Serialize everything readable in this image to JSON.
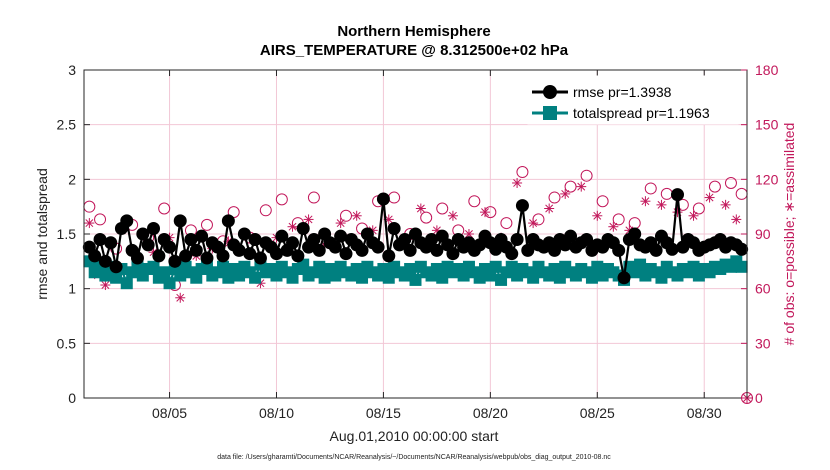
{
  "chart_data": {
    "type": "line",
    "title": "Northern Hemisphere",
    "subtitle": "AIRS_TEMPERATURE @ 8.312500e+02 hPa",
    "xlabel": "Aug.01,2010 00:00:00 start",
    "ylabel": "rmse and totalspread",
    "y2label": "# of obs: o=possible; ∗=assimilated",
    "xlim": [
      1,
      32
    ],
    "ylim": [
      0,
      3
    ],
    "y2lim": [
      0,
      180
    ],
    "x_ticks": [
      5,
      10,
      15,
      20,
      25,
      30
    ],
    "x_tick_labels": [
      "08/05",
      "08/10",
      "08/15",
      "08/20",
      "08/25",
      "08/30"
    ],
    "y_tick_labels": [
      "0",
      "0.5",
      "1",
      "1.5",
      "2",
      "2.5",
      "3"
    ],
    "y2_tick_labels": [
      "0",
      "30",
      "60",
      "90",
      "120",
      "150",
      "180"
    ],
    "grid": true,
    "legend_position": "top-right",
    "colors": {
      "rmse": "#000000",
      "totalspread": "#008080",
      "obs": "#c2185b"
    },
    "series": [
      {
        "name": "rmse pr=1.3938",
        "axis": "left",
        "marker": "circle",
        "x": [
          1.25,
          1.5,
          1.75,
          2,
          2.25,
          2.5,
          2.75,
          3,
          3.25,
          3.5,
          3.75,
          4,
          4.25,
          4.5,
          4.75,
          5,
          5.25,
          5.5,
          5.75,
          6,
          6.25,
          6.5,
          6.75,
          7,
          7.25,
          7.5,
          7.75,
          8,
          8.25,
          8.5,
          8.75,
          9,
          9.25,
          9.5,
          9.75,
          10,
          10.25,
          10.5,
          10.75,
          11,
          11.25,
          11.5,
          11.75,
          12,
          12.25,
          12.5,
          12.75,
          13,
          13.25,
          13.5,
          13.75,
          14,
          14.25,
          14.5,
          14.75,
          15,
          15.25,
          15.5,
          15.75,
          16,
          16.25,
          16.5,
          16.75,
          17,
          17.25,
          17.5,
          17.75,
          18,
          18.25,
          18.5,
          18.75,
          19,
          19.25,
          19.5,
          19.75,
          20,
          20.25,
          20.5,
          20.75,
          21,
          21.25,
          21.5,
          21.75,
          22,
          22.25,
          22.5,
          22.75,
          23,
          23.25,
          23.5,
          23.75,
          24,
          24.25,
          24.5,
          24.75,
          25,
          25.25,
          25.5,
          25.75,
          26,
          26.25,
          26.5,
          26.75,
          27,
          27.25,
          27.5,
          27.75,
          28,
          28.25,
          28.5,
          28.75,
          29,
          29.25,
          29.5,
          29.75,
          30,
          30.25,
          30.5,
          30.75,
          31,
          31.25,
          31.5,
          31.75
        ],
        "values": [
          1.38,
          1.3,
          1.45,
          1.25,
          1.42,
          1.2,
          1.55,
          1.62,
          1.35,
          1.28,
          1.5,
          1.4,
          1.55,
          1.3,
          1.45,
          1.38,
          1.25,
          1.62,
          1.3,
          1.45,
          1.35,
          1.48,
          1.28,
          1.42,
          1.38,
          1.3,
          1.62,
          1.4,
          1.35,
          1.5,
          1.32,
          1.45,
          1.28,
          1.42,
          1.38,
          1.32,
          1.48,
          1.35,
          1.42,
          1.3,
          1.55,
          1.38,
          1.45,
          1.35,
          1.5,
          1.42,
          1.38,
          1.48,
          1.32,
          1.45,
          1.4,
          1.35,
          1.5,
          1.42,
          1.38,
          1.82,
          1.3,
          1.55,
          1.4,
          1.45,
          1.35,
          1.5,
          1.42,
          1.38,
          1.45,
          1.35,
          1.48,
          1.4,
          1.32,
          1.45,
          1.38,
          1.42,
          1.35,
          1.4,
          1.48,
          1.42,
          1.36,
          1.45,
          1.38,
          1.32,
          1.45,
          1.76,
          1.35,
          1.45,
          1.4,
          1.38,
          1.42,
          1.35,
          1.45,
          1.4,
          1.48,
          1.38,
          1.42,
          1.45,
          1.35,
          1.4,
          1.38,
          1.45,
          1.42,
          1.35,
          1.1,
          1.45,
          1.5,
          1.4,
          1.38,
          1.42,
          1.35,
          1.48,
          1.42,
          1.36,
          1.86,
          1.38,
          1.45,
          1.42,
          1.35,
          1.38,
          1.4,
          1.42,
          1.45,
          1.38,
          1.42,
          1.4,
          1.36
        ]
      },
      {
        "name": "totalspread pr=1.1963",
        "axis": "left",
        "marker": "square",
        "x": [
          1.25,
          1.5,
          1.75,
          2,
          2.25,
          2.5,
          2.75,
          3,
          3.25,
          3.5,
          3.75,
          4,
          4.25,
          4.5,
          4.75,
          5,
          5.25,
          5.5,
          5.75,
          6,
          6.25,
          6.5,
          6.75,
          7,
          7.25,
          7.5,
          7.75,
          8,
          8.25,
          8.5,
          8.75,
          9,
          9.25,
          9.5,
          9.75,
          10,
          10.25,
          10.5,
          10.75,
          11,
          11.25,
          11.5,
          11.75,
          12,
          12.25,
          12.5,
          12.75,
          13,
          13.25,
          13.5,
          13.75,
          14,
          14.25,
          14.5,
          14.75,
          15,
          15.25,
          15.5,
          15.75,
          16,
          16.25,
          16.5,
          16.75,
          17,
          17.25,
          17.5,
          17.75,
          18,
          18.25,
          18.5,
          18.75,
          19,
          19.25,
          19.5,
          19.75,
          20,
          20.25,
          20.5,
          20.75,
          21,
          21.25,
          21.5,
          21.75,
          22,
          22.25,
          22.5,
          22.75,
          23,
          23.25,
          23.5,
          23.75,
          24,
          24.25,
          24.5,
          24.75,
          25,
          25.25,
          25.5,
          25.75,
          26,
          26.25,
          26.5,
          26.75,
          27,
          27.25,
          27.5,
          27.75,
          28,
          28.25,
          28.5,
          28.75,
          29,
          29.25,
          29.5,
          29.75,
          30,
          30.25,
          30.5,
          30.75,
          31,
          31.25,
          31.5,
          31.75
        ],
        "values": [
          1.25,
          1.15,
          1.22,
          1.12,
          1.2,
          1.1,
          1.18,
          1.05,
          1.15,
          1.22,
          1.12,
          1.18,
          1.2,
          1.1,
          1.15,
          1.05,
          1.18,
          1.12,
          1.2,
          1.15,
          1.1,
          1.18,
          1.22,
          1.12,
          1.15,
          1.2,
          1.1,
          1.18,
          1.12,
          1.2,
          1.15,
          1.1,
          1.22,
          1.15,
          1.18,
          1.12,
          1.2,
          1.15,
          1.1,
          1.18,
          1.22,
          1.12,
          1.15,
          1.2,
          1.1,
          1.18,
          1.12,
          1.2,
          1.15,
          1.12,
          1.18,
          1.1,
          1.2,
          1.15,
          1.12,
          1.18,
          1.1,
          1.2,
          1.15,
          1.12,
          1.18,
          1.08,
          1.2,
          1.15,
          1.12,
          1.18,
          1.1,
          1.2,
          1.15,
          1.18,
          1.12,
          1.2,
          1.15,
          1.1,
          1.18,
          1.12,
          1.2,
          1.08,
          1.15,
          1.2,
          1.12,
          1.18,
          1.15,
          1.1,
          1.2,
          1.15,
          1.12,
          1.18,
          1.1,
          1.2,
          1.15,
          1.12,
          1.18,
          1.15,
          1.1,
          1.2,
          1.12,
          1.18,
          1.15,
          1.12,
          1.08,
          1.2,
          1.15,
          1.22,
          1.12,
          1.18,
          1.15,
          1.1,
          1.2,
          1.15,
          1.12,
          1.18,
          1.15,
          1.2,
          1.12,
          1.18,
          1.15,
          1.2,
          1.18,
          1.22,
          1.2,
          1.25,
          1.2
        ]
      },
      {
        "name": "possible",
        "axis": "right",
        "marker": "open-circle",
        "x": [
          1.25,
          1.75,
          2.5,
          3.25,
          4,
          4.75,
          5.25,
          6,
          6.75,
          7.5,
          8,
          8.75,
          9.5,
          10.25,
          11,
          11.75,
          12.5,
          13.25,
          14,
          14.75,
          15.5,
          16.25,
          17,
          17.75,
          18.5,
          19.25,
          20,
          20.75,
          21.5,
          22.25,
          23,
          23.75,
          24.5,
          25.25,
          26,
          26.75,
          27.5,
          28.25,
          29,
          29.75,
          30.5,
          31.25,
          31.75
        ],
        "values": [
          105,
          98,
          82,
          95,
          88,
          104,
          62,
          92,
          95,
          86,
          102,
          88,
          103,
          109,
          96,
          110,
          85,
          100,
          93,
          108,
          110,
          90,
          99,
          104,
          92,
          108,
          102,
          96,
          124,
          98,
          110,
          116,
          122,
          108,
          98,
          96,
          115,
          112,
          106,
          104,
          116,
          118,
          112
        ]
      },
      {
        "name": "assimilated",
        "axis": "right",
        "marker": "asterisk",
        "x": [
          1.25,
          1.5,
          2,
          2.75,
          3.5,
          4.25,
          5,
          5.5,
          6.25,
          7,
          7.75,
          8.5,
          9.25,
          10,
          10.75,
          11.5,
          12.25,
          13,
          13.75,
          14.5,
          15.25,
          16,
          16.75,
          17.5,
          18.25,
          19,
          19.75,
          20.5,
          21.25,
          22,
          22.75,
          23.5,
          24.25,
          25,
          25.75,
          26.5,
          27.25,
          28,
          28.75,
          29.5,
          30.25,
          31,
          31.5
        ],
        "values": [
          96,
          68,
          62,
          70,
          74,
          80,
          88,
          55,
          78,
          82,
          86,
          90,
          63,
          88,
          94,
          98,
          84,
          96,
          100,
          92,
          98,
          86,
          104,
          92,
          100,
          90,
          102,
          88,
          118,
          96,
          104,
          112,
          116,
          100,
          94,
          92,
          108,
          106,
          102,
          100,
          110,
          106,
          98
        ]
      }
    ]
  },
  "footer": "data file: /Users/gharamti/Documents/NCAR/Reanalysis/~/Documents/NCAR/Reanalysis/webpub/obs_diag_output_2010-08.nc"
}
